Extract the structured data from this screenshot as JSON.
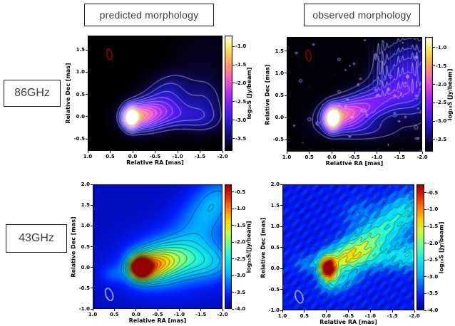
{
  "figure": {
    "column_headers": [
      {
        "label": "predicted morphology"
      },
      {
        "label": "observed morphology"
      }
    ],
    "row_headers": [
      {
        "label": "86GHz"
      },
      {
        "label": "43GHz"
      }
    ]
  },
  "chart_data": [
    {
      "id": "86ghz-predicted",
      "type": "heatmap",
      "row": "86GHz",
      "column": "predicted morphology",
      "xlabel": "Relative RA [mas]",
      "ylabel": "Relative Dec [mas]",
      "xlim": [
        1.0,
        -2.0
      ],
      "ylim": [
        -0.77,
        1.82
      ],
      "x_ticks": [
        "1.0",
        "0.5",
        "0.0",
        "-0.5",
        "-1.0",
        "-1.5",
        "-2.0"
      ],
      "x_tick_values": [
        1.0,
        0.5,
        0.0,
        -0.5,
        -1.0,
        -1.5,
        -2.0
      ],
      "y_ticks": [
        "1.5",
        "1.0",
        "0.5",
        "0.0",
        "-0.5"
      ],
      "y_tick_values": [
        1.5,
        1.0,
        0.5,
        0.0,
        -0.5
      ],
      "colormap": "gnuplot2",
      "grid": false,
      "background_value": 0.0,
      "noise": "none",
      "colorbar": {
        "label": "log₁₀S [Jy/beam]",
        "ticks": [
          "-1.0",
          "-1.5",
          "-2.0",
          "-2.5",
          "-3.0",
          "-3.5"
        ],
        "tick_values": [
          -1.0,
          -1.5,
          -2.0,
          -2.5,
          -3.0,
          -3.5
        ],
        "vmax": -0.71,
        "vmin": -3.83
      },
      "beam": {
        "x": 0.52,
        "y": 1.4,
        "rx": 0.055,
        "ry": 0.125,
        "angle": -10,
        "color": "#cc0000"
      },
      "contours": {
        "color": "rgba(205,218,255,0.95)",
        "width": 0.7,
        "min": 0.1,
        "max": 0.88,
        "count": 13
      },
      "components": [
        {
          "x": 0.05,
          "y": -0.02,
          "sx": 0.1,
          "sy": 0.15,
          "rot": 0,
          "amp": 1.05
        },
        {
          "x": -0.1,
          "y": 0.02,
          "sx": 0.24,
          "sy": 0.2,
          "rot": -5,
          "amp": 0.5
        },
        {
          "x": -0.45,
          "y": 0.08,
          "sx": 0.3,
          "sy": 0.24,
          "rot": -10,
          "amp": 0.3
        },
        {
          "x": -0.85,
          "y": 0.3,
          "sx": 0.42,
          "sy": 0.3,
          "rot": -18,
          "amp": 0.18
        },
        {
          "x": -0.75,
          "y": 0.7,
          "sx": 0.35,
          "sy": 0.22,
          "rot": -25,
          "amp": 0.1
        },
        {
          "x": -1.25,
          "y": -0.02,
          "sx": 0.45,
          "sy": 0.2,
          "rot": 4,
          "amp": 0.16
        },
        {
          "x": -1.65,
          "y": 0.3,
          "sx": 0.28,
          "sy": 0.38,
          "rot": 0,
          "amp": 0.13
        },
        {
          "x": -1.55,
          "y": 1.3,
          "sx": 0.45,
          "sy": 0.45,
          "rot": 0,
          "amp": 0.045
        }
      ]
    },
    {
      "id": "86ghz-observed",
      "type": "heatmap",
      "row": "86GHz",
      "column": "observed morphology",
      "xlabel": "Relative RA [mas]",
      "ylabel": "Relative Dec [mas]",
      "xlim": [
        1.0,
        -2.0
      ],
      "ylim": [
        -0.77,
        1.82
      ],
      "x_ticks": [
        "1.0",
        "0.5",
        "0.0",
        "-0.5",
        "-1.0",
        "-1.5",
        "-2.0"
      ],
      "x_tick_values": [
        1.0,
        0.5,
        0.0,
        -0.5,
        -1.0,
        -1.5,
        -2.0
      ],
      "y_ticks": [
        "1.5",
        "1.0",
        "0.5",
        "0.0",
        "-0.5"
      ],
      "y_tick_values": [
        1.5,
        1.0,
        0.5,
        0.0,
        -0.5
      ],
      "colormap": "gnuplot2",
      "grid": false,
      "background_value": 0.01,
      "noise": "specks-streaks",
      "colorbar": {
        "label": "log₁₀S [Jy/beam]",
        "ticks": [
          "-1.0",
          "-1.5",
          "-2.0",
          "-2.5",
          "-3.0",
          "-3.5"
        ],
        "tick_values": [
          -1.0,
          -1.5,
          -2.0,
          -2.5,
          -3.0,
          -3.5
        ],
        "vmax": -0.71,
        "vmin": -3.83
      },
      "beam": {
        "x": 0.52,
        "y": 1.4,
        "rx": 0.055,
        "ry": 0.125,
        "angle": -10,
        "color": "#cc0000"
      },
      "contours": {
        "color": "rgba(205,218,255,0.9)",
        "width": 0.7,
        "min": 0.07,
        "max": 0.88,
        "count": 12
      },
      "components": [
        {
          "x": 0.0,
          "y": -0.02,
          "sx": 0.1,
          "sy": 0.16,
          "rot": 0,
          "amp": 1.05
        },
        {
          "x": -0.12,
          "y": 0.05,
          "sx": 0.26,
          "sy": 0.2,
          "rot": -8,
          "amp": 0.45
        },
        {
          "x": -0.5,
          "y": 0.15,
          "sx": 0.32,
          "sy": 0.22,
          "rot": -12,
          "amp": 0.3
        },
        {
          "x": -0.95,
          "y": 0.35,
          "sx": 0.42,
          "sy": 0.26,
          "rot": -16,
          "amp": 0.22
        },
        {
          "x": -1.45,
          "y": 0.6,
          "sx": 0.45,
          "sy": 0.3,
          "rot": -20,
          "amp": 0.18
        },
        {
          "x": -1.85,
          "y": 0.55,
          "sx": 0.3,
          "sy": 0.45,
          "rot": 0,
          "amp": 0.17
        },
        {
          "x": -1.3,
          "y": 1.15,
          "sx": 0.3,
          "sy": 0.3,
          "rot": -30,
          "amp": 0.12
        },
        {
          "x": -1.8,
          "y": 1.35,
          "sx": 0.28,
          "sy": 0.33,
          "rot": -20,
          "amp": 0.13
        },
        {
          "x": -0.6,
          "y": -0.25,
          "sx": 0.55,
          "sy": 0.16,
          "rot": 2,
          "amp": 0.14
        }
      ]
    },
    {
      "id": "43ghz-predicted",
      "type": "heatmap",
      "row": "43GHz",
      "column": "predicted morphology",
      "xlabel": "Relative RA [mas]",
      "ylabel": "Relative Dec [mas]",
      "xlim": [
        1.0,
        -2.0
      ],
      "ylim": [
        -1.0,
        2.0
      ],
      "x_ticks": [
        "1.0",
        "0.5",
        "0.0",
        "-0.5",
        "-1.0",
        "-1.5",
        "-2.0"
      ],
      "x_tick_values": [
        1.0,
        0.5,
        0.0,
        -0.5,
        -1.0,
        -1.5,
        -2.0
      ],
      "y_ticks": [
        "2.0",
        "1.5",
        "1.0",
        "0.5",
        "0.0",
        "-0.5",
        "-1.0"
      ],
      "y_tick_values": [
        2.0,
        1.5,
        1.0,
        0.5,
        0.0,
        -0.5,
        -1.0
      ],
      "colormap": "jet",
      "grid": false,
      "background_value": 0.055,
      "noise": "none",
      "colorbar": {
        "label": "log₁₀S/[Jy/beam]",
        "ticks": [
          "-0.5",
          "-1.0",
          "-1.5",
          "-2.0",
          "-2.5",
          "-3.0",
          "-3.5",
          "-4.0"
        ],
        "tick_values": [
          -0.5,
          -1.0,
          -1.5,
          -2.0,
          -2.5,
          -3.0,
          -3.5,
          -4.0
        ],
        "vmax": -0.27,
        "vmin": -4.0
      },
      "beam": {
        "x": 0.62,
        "y": -0.65,
        "rx": 0.08,
        "ry": 0.155,
        "angle": -20,
        "color": "#e8e8e8"
      },
      "contours": {
        "color": "rgba(15,15,15,0.85)",
        "width": 0.7,
        "min": 0.24,
        "max": 0.95,
        "count": 14
      },
      "components": [
        {
          "x": -0.08,
          "y": 0.0,
          "sx": 0.17,
          "sy": 0.19,
          "rot": -15,
          "amp": 0.95
        },
        {
          "x": -0.35,
          "y": 0.05,
          "sx": 0.32,
          "sy": 0.26,
          "rot": -10,
          "amp": 0.4
        },
        {
          "x": -0.8,
          "y": 0.2,
          "sx": 0.5,
          "sy": 0.33,
          "rot": -12,
          "amp": 0.28
        },
        {
          "x": -1.0,
          "y": 0.2,
          "sx": 0.85,
          "sy": 0.5,
          "rot": -10,
          "amp": 0.18
        },
        {
          "x": -1.55,
          "y": 1.2,
          "sx": 0.5,
          "sy": 0.38,
          "rot": -38,
          "amp": 0.17
        },
        {
          "x": -1.9,
          "y": 1.75,
          "sx": 0.4,
          "sy": 0.32,
          "rot": -38,
          "amp": 0.14
        },
        {
          "x": -1.75,
          "y": 0.1,
          "sx": 0.4,
          "sy": 0.28,
          "rot": 0,
          "amp": 0.14
        },
        {
          "x": 0.55,
          "y": -0.15,
          "sx": 0.2,
          "sy": 0.16,
          "rot": 0,
          "amp": 0.09
        }
      ]
    },
    {
      "id": "43ghz-observed",
      "type": "heatmap",
      "row": "43GHz",
      "column": "observed morphology",
      "xlabel": "Relative RA [mas]",
      "ylabel": "Relative Dec [mas]",
      "xlim": [
        1.0,
        -2.0
      ],
      "ylim": [
        -1.0,
        2.0
      ],
      "x_ticks": [
        "1.0",
        "0.5",
        "0.0",
        "-0.5",
        "-1.0",
        "-1.5",
        "-2.0"
      ],
      "x_tick_values": [
        1.0,
        0.5,
        0.0,
        -0.5,
        -1.0,
        -1.5,
        -2.0
      ],
      "y_ticks": [
        "2.0",
        "1.5",
        "1.0",
        "0.5",
        "0.0",
        "-0.5",
        "-1.0"
      ],
      "y_tick_values": [
        2.0,
        1.5,
        1.0,
        0.5,
        0.0,
        -0.5,
        -1.0
      ],
      "colormap": "jet",
      "grid": false,
      "background_value": 0.09,
      "noise": "diagonal-ripples",
      "colorbar": {
        "label": "log₁₀S [Jy/beam]",
        "ticks": [
          "-0.5",
          "-1.0",
          "-1.5",
          "-2.0",
          "-2.5",
          "-3.0",
          "-3.5",
          "-4.0"
        ],
        "tick_values": [
          -0.5,
          -1.0,
          -1.5,
          -2.0,
          -2.5,
          -3.0,
          -3.5,
          -4.0
        ],
        "vmax": -0.25,
        "vmin": -4.0
      },
      "beam": {
        "x": 0.62,
        "y": -0.68,
        "rx": 0.08,
        "ry": 0.155,
        "angle": -20,
        "color": "#e8e8e8"
      },
      "contours": {
        "color": "rgba(15,15,15,0.8)",
        "width": 0.6,
        "min": 0.16,
        "max": 0.92,
        "count": 10
      },
      "components": [
        {
          "x": -0.02,
          "y": 0.0,
          "sx": 0.14,
          "sy": 0.21,
          "rot": -5,
          "amp": 0.9
        },
        {
          "x": -0.4,
          "y": 0.25,
          "sx": 0.3,
          "sy": 0.24,
          "rot": -28,
          "amp": 0.4
        },
        {
          "x": -0.85,
          "y": 0.55,
          "sx": 0.36,
          "sy": 0.25,
          "rot": -25,
          "amp": 0.3
        },
        {
          "x": -1.3,
          "y": 0.95,
          "sx": 0.42,
          "sy": 0.27,
          "rot": -30,
          "amp": 0.24
        },
        {
          "x": -1.8,
          "y": 1.4,
          "sx": 0.38,
          "sy": 0.3,
          "rot": -30,
          "amp": 0.22
        },
        {
          "x": -1.3,
          "y": 0.25,
          "sx": 0.6,
          "sy": 0.2,
          "rot": -4,
          "amp": 0.2
        },
        {
          "x": -1.95,
          "y": 0.35,
          "sx": 0.3,
          "sy": 0.28,
          "rot": 0,
          "amp": 0.17
        },
        {
          "x": 0.45,
          "y": 0.12,
          "sx": 0.22,
          "sy": 0.16,
          "rot": 0,
          "amp": 0.13
        },
        {
          "x": -0.3,
          "y": -0.33,
          "sx": 0.32,
          "sy": 0.17,
          "rot": -18,
          "amp": 0.18
        },
        {
          "x": -0.7,
          "y": 1.35,
          "sx": 0.3,
          "sy": 0.22,
          "rot": -30,
          "amp": 0.1
        }
      ]
    }
  ]
}
